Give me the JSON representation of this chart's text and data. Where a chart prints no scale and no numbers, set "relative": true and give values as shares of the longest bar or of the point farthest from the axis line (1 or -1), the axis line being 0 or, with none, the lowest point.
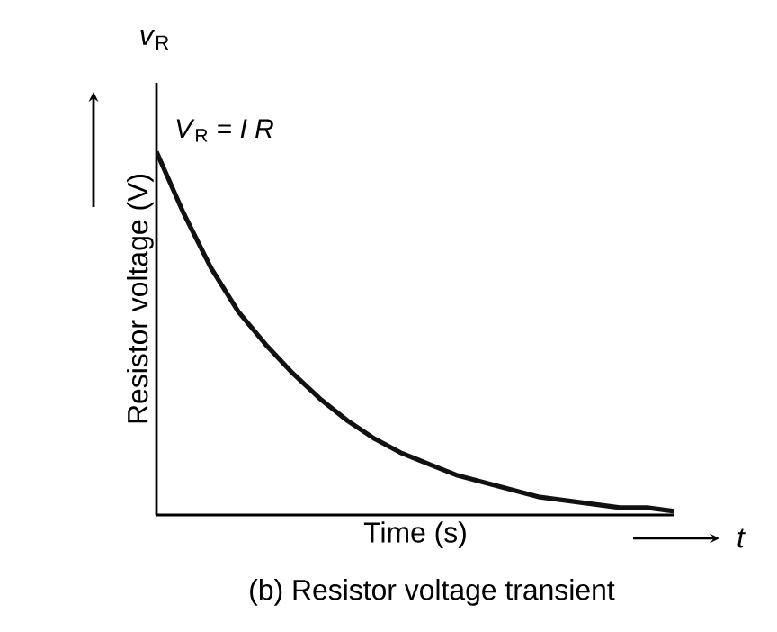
{
  "chart_data": {
    "type": "line",
    "title": "(b) Resistor voltage transient",
    "xlabel": "Time (s)",
    "ylabel": "Resistor voltage (V)",
    "annotations": [
      "*v*$_{R}$",
      "*V*$_{R}$ = *I R*",
      "*t*"
    ],
    "relative": true,
    "categories": [
      null,
      null,
      null,
      null,
      null,
      null,
      null,
      null,
      null,
      null,
      null,
      null,
      null,
      null,
      null,
      null,
      null,
      null,
      null,
      null
    ],
    "series": [
      {
        "color": "#111111",
        "values": [
          1,
          0.83,
          0.68,
          0.56,
          0.47,
          0.39,
          0.32,
          0.26,
          0.21,
          0.17,
          0.14,
          0.11,
          0.09,
          0.07,
          0.05,
          0.04,
          0.03,
          0.02,
          0.02,
          0.01
        ]
      }
    ]
  }
}
